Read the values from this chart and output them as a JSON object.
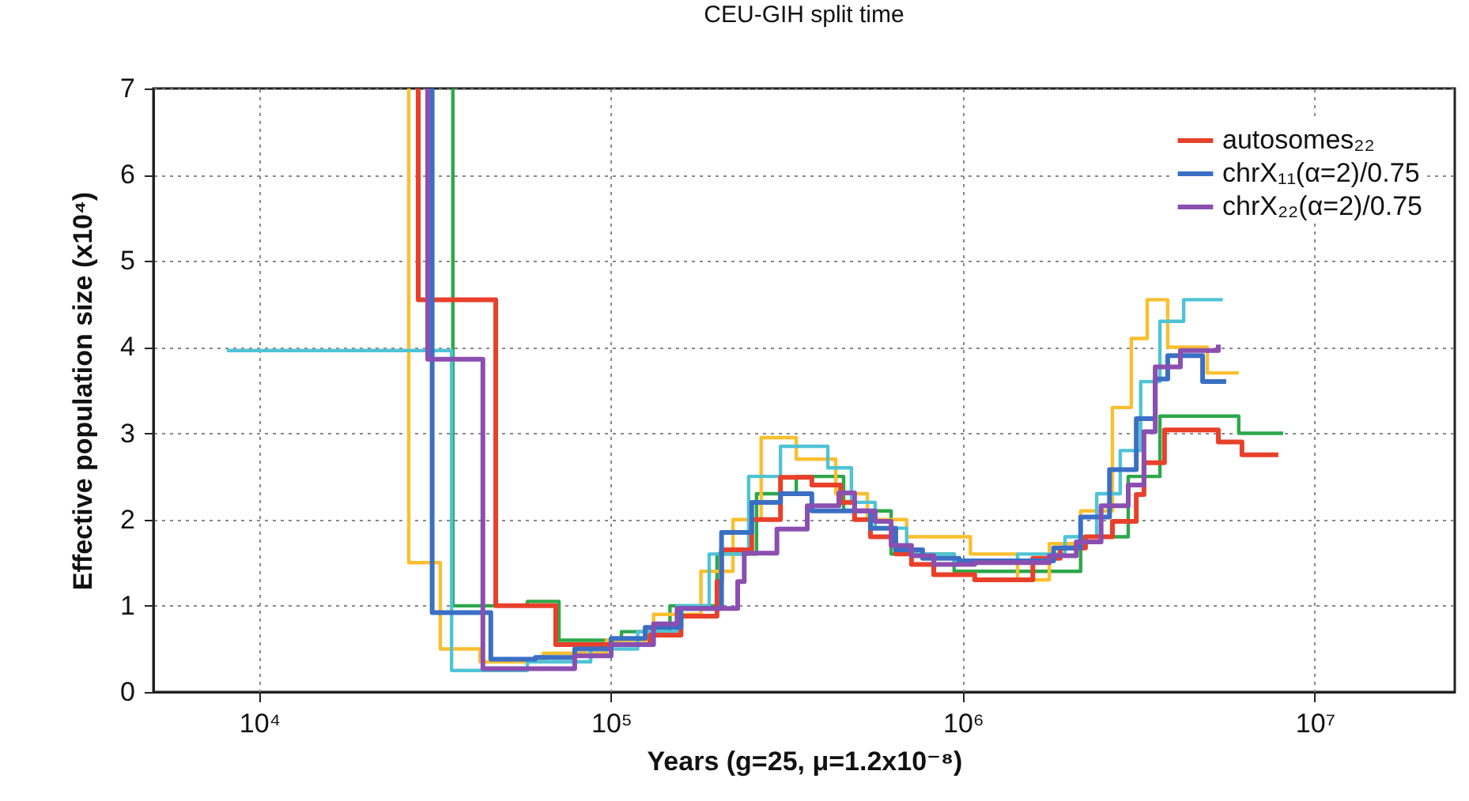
{
  "chart_data": {
    "type": "step",
    "title": "CEU-GIH split time",
    "xlabel": "Years (g=25, μ=1.2x10⁻⁸)",
    "ylabel": "Effective population size (x10⁴)",
    "log": "x",
    "grid": true,
    "legend": "top right",
    "xlim": [
      5000,
      25000000
    ],
    "xticks": [
      {
        "value": 10000,
        "label": "10⁴"
      },
      {
        "value": 100000,
        "label": "10⁵"
      },
      {
        "value": 1000000,
        "label": "10⁶"
      },
      {
        "value": 10000000,
        "label": "10⁷"
      }
    ],
    "ylim": [
      0,
      7
    ],
    "yticks": [
      0,
      1,
      2,
      3,
      4,
      5,
      6,
      7
    ],
    "series": [
      {
        "color": "#2ca84a",
        "x": [
          35500,
          35500,
          42400,
          57800,
          71100,
          107000,
          147000,
          200000,
          259000,
          336000,
          458000,
          625000,
          944000,
          1430000,
          2160000,
          2950000,
          3630000,
          4950000,
          6080000,
          8130000
        ],
        "values": [
          7,
          1.0,
          1.0,
          1.05,
          0.6,
          0.7,
          1.0,
          1.6,
          2.3,
          2.5,
          2.1,
          1.6,
          1.4,
          1.4,
          1.8,
          2.5,
          3.2,
          3.2,
          3.0,
          3.0
        ]
      },
      {
        "color": "#fbbf2e",
        "x": [
          26600,
          26600,
          32700,
          42400,
          64100,
          97000,
          132000,
          180000,
          222000,
          267000,
          336000,
          435000,
          535000,
          692000,
          1050000,
          1430000,
          1760000,
          2160000,
          2660000,
          3010000,
          3340000,
          3820000,
          4950000,
          6080000
        ],
        "values": [
          7,
          1.5,
          0.5,
          0.35,
          0.45,
          0.6,
          0.9,
          1.4,
          2.0,
          2.95,
          2.7,
          2.3,
          2.0,
          1.8,
          1.6,
          1.3,
          1.72,
          2.1,
          3.3,
          4.1,
          4.55,
          4.0,
          3.7,
          3.7
        ]
      },
      {
        "color": "#4fc3d6",
        "x": [
          8090,
          35200,
          57800,
          87500,
          119000,
          154000,
          190000,
          246000,
          303000,
          413000,
          482000,
          563000,
          692000,
          944000,
          1430000,
          1950000,
          2400000,
          2800000,
          3200000,
          3630000,
          4240000,
          5480000
        ],
        "values": [
          3.96,
          0.25,
          0.35,
          0.5,
          0.7,
          1.0,
          1.6,
          2.5,
          2.85,
          2.6,
          2.2,
          1.9,
          1.6,
          1.5,
          1.6,
          1.8,
          2.3,
          2.8,
          3.6,
          4.3,
          4.55,
          4.55
        ]
      },
      {
        "name": "autosomes₂₂",
        "color": "#e8402a",
        "x": [
          28300,
          28300,
          47000,
          69600,
          129000,
          158000,
          200000,
          206000,
          251000,
          303000,
          372000,
          449000,
          492000,
          546000,
          644000,
          714000,
          826000,
          1080000,
          1580000,
          1890000,
          2230000,
          2660000,
          3110000,
          3270000,
          3740000,
          5320000,
          6210000,
          7880000
        ],
        "values": [
          7,
          4.55,
          1.0,
          0.55,
          0.66,
          0.88,
          1.28,
          1.65,
          2.0,
          2.49,
          2.4,
          2.2,
          2.0,
          1.8,
          1.6,
          1.48,
          1.36,
          1.3,
          1.55,
          1.67,
          1.8,
          1.98,
          2.29,
          2.66,
          3.04,
          2.9,
          2.75,
          2.75
        ]
      },
      {
        "name": "chrX₁₁(α=2)/0.75",
        "color": "#3a6fc4",
        "x": [
          31000,
          31000,
          45500,
          60900,
          78800,
          100000,
          125000,
          158000,
          206000,
          251000,
          303000,
          372000,
          546000,
          644000,
          768000,
          975000,
          1810000,
          2160000,
          2610000,
          3110000,
          3520000,
          3820000,
          4800000,
          5600000
        ],
        "values": [
          7,
          0.92,
          0.38,
          0.4,
          0.5,
          0.62,
          0.75,
          0.97,
          1.85,
          2.2,
          2.3,
          2.1,
          1.9,
          1.65,
          1.55,
          1.52,
          1.67,
          2.03,
          2.58,
          3.17,
          3.63,
          3.9,
          3.6,
          3.6
        ]
      },
      {
        "name": "chrX₂₂(α=2)/0.75",
        "color": "#8a4fb0",
        "x": [
          30100,
          30100,
          43200,
          78800,
          100000,
          132000,
          154000,
          229000,
          239000,
          296000,
          361000,
          444000,
          492000,
          563000,
          625000,
          714000,
          826000,
          1080000,
          1760000,
          2100000,
          2470000,
          2950000,
          3270000,
          3520000,
          4150000,
          5320000
        ],
        "values": [
          7,
          3.86,
          0.27,
          0.42,
          0.55,
          0.79,
          0.97,
          1.28,
          1.61,
          1.89,
          2.16,
          2.31,
          2.1,
          1.98,
          1.7,
          1.58,
          1.48,
          1.5,
          1.58,
          1.74,
          2.16,
          2.4,
          3.02,
          3.77,
          3.96,
          4.03
        ]
      }
    ]
  }
}
